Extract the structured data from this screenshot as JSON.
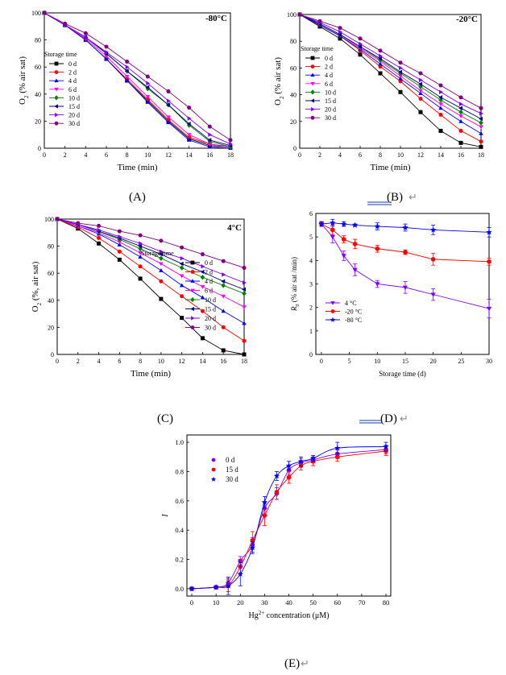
{
  "figure": {
    "captions": [
      "(A)",
      "(B)",
      "(C)",
      "(D)",
      "(E)"
    ],
    "return_mark": "↵"
  },
  "chart_data": [
    {
      "id": "A",
      "type": "line",
      "panel_label": "-80°C",
      "xlabel": "Time (min)",
      "ylabel": "O2 (% air sat)",
      "xlim": [
        0,
        18
      ],
      "ylim": [
        0,
        100
      ],
      "xticks": [
        0,
        2,
        4,
        6,
        8,
        10,
        12,
        14,
        16,
        18
      ],
      "yticks": [
        0,
        20,
        40,
        60,
        80,
        100
      ],
      "legend_title": "Storage time",
      "legend_position": "left",
      "x": [
        0,
        2,
        4,
        6,
        8,
        10,
        12,
        14,
        16,
        18
      ],
      "series": [
        {
          "name": "0 d",
          "color": "#000000",
          "marker": "square",
          "values": [
            100,
            91,
            80,
            66,
            50,
            35,
            20,
            7,
            2,
            1
          ]
        },
        {
          "name": "2 d",
          "color": "#ff0000",
          "marker": "circle",
          "values": [
            100,
            91,
            80,
            66,
            51,
            36,
            21,
            8,
            3,
            1
          ]
        },
        {
          "name": "4 d",
          "color": "#0000ff",
          "marker": "triangle-up",
          "values": [
            100,
            91,
            80,
            66,
            50,
            34,
            19,
            6,
            1,
            0
          ]
        },
        {
          "name": "6 d",
          "color": "#ff00ff",
          "marker": "triangle-down",
          "values": [
            100,
            91,
            81,
            68,
            53,
            38,
            23,
            10,
            3,
            1
          ]
        },
        {
          "name": "10 d",
          "color": "#008000",
          "marker": "diamond",
          "values": [
            100,
            91,
            82,
            70,
            57,
            44,
            32,
            17,
            5,
            1
          ]
        },
        {
          "name": "15 d",
          "color": "#000080",
          "marker": "triangle-left",
          "values": [
            100,
            91,
            82,
            70,
            57,
            45,
            32,
            18,
            6,
            2
          ]
        },
        {
          "name": "20 d",
          "color": "#8000ff",
          "marker": "triangle-right",
          "values": [
            100,
            91,
            82,
            71,
            60,
            48,
            35,
            22,
            10,
            3
          ]
        },
        {
          "name": "30 d",
          "color": "#800080",
          "marker": "hexagon",
          "values": [
            100,
            92,
            85,
            75,
            64,
            53,
            42,
            30,
            16,
            6
          ]
        }
      ]
    },
    {
      "id": "B",
      "type": "line",
      "panel_label": "-20°C",
      "xlabel": "Time (min)",
      "ylabel": "O2 (% air sat)",
      "xlim": [
        0,
        18
      ],
      "ylim": [
        0,
        100
      ],
      "xticks": [
        0,
        2,
        4,
        6,
        8,
        10,
        12,
        14,
        16,
        18
      ],
      "yticks": [
        0,
        20,
        40,
        60,
        80,
        100
      ],
      "legend_title": "Storage time",
      "legend_position": "left",
      "x": [
        0,
        2,
        4,
        6,
        8,
        10,
        12,
        14,
        16,
        18
      ],
      "series": [
        {
          "name": "0 d",
          "color": "#000000",
          "marker": "square",
          "values": [
            100,
            91,
            82,
            70,
            56,
            42,
            27,
            13,
            4,
            1
          ]
        },
        {
          "name": "2 d",
          "color": "#ff0000",
          "marker": "circle",
          "values": [
            100,
            92,
            84,
            73,
            61,
            50,
            37,
            25,
            13,
            5
          ]
        },
        {
          "name": "4 d",
          "color": "#0000ff",
          "marker": "triangle-up",
          "values": [
            100,
            92,
            84,
            74,
            63,
            52,
            41,
            30,
            20,
            11
          ]
        },
        {
          "name": "6 d",
          "color": "#ff00ff",
          "marker": "triangle-down",
          "values": [
            100,
            93,
            85,
            75,
            65,
            54,
            43,
            33,
            24,
            16
          ]
        },
        {
          "name": "10 d",
          "color": "#008000",
          "marker": "diamond",
          "values": [
            100,
            93,
            85,
            76,
            66,
            56,
            46,
            36,
            27,
            19
          ]
        },
        {
          "name": "15 d",
          "color": "#000080",
          "marker": "triangle-left",
          "values": [
            100,
            93,
            85,
            76,
            67,
            57,
            48,
            38,
            30,
            22
          ]
        },
        {
          "name": "20 d",
          "color": "#8000ff",
          "marker": "triangle-right",
          "values": [
            100,
            94,
            87,
            78,
            69,
            60,
            51,
            42,
            33,
            26
          ]
        },
        {
          "name": "30 d",
          "color": "#800080",
          "marker": "hexagon",
          "values": [
            100,
            95,
            90,
            82,
            73,
            64,
            56,
            47,
            38,
            30
          ]
        }
      ]
    },
    {
      "id": "C",
      "type": "line",
      "panel_label": "4°C",
      "xlabel": "Time (min)",
      "ylabel": "O2 (%, air sat)",
      "xlim": [
        0,
        18
      ],
      "ylim": [
        0,
        100
      ],
      "xticks": [
        0,
        2,
        4,
        6,
        8,
        10,
        12,
        14,
        16,
        18
      ],
      "yticks": [
        0,
        20,
        40,
        60,
        80,
        100
      ],
      "legend_title": "Storage time",
      "legend_position": "top-right",
      "x": [
        0,
        2,
        4,
        6,
        8,
        10,
        12,
        14,
        16,
        18
      ],
      "series": [
        {
          "name": "0 d",
          "color": "#000000",
          "marker": "square",
          "values": [
            100,
            93,
            82,
            70,
            56,
            41,
            27,
            12,
            3,
            0
          ]
        },
        {
          "name": "2 d",
          "color": "#ff0000",
          "marker": "circle",
          "values": [
            100,
            94,
            86,
            76,
            65,
            54,
            43,
            32,
            20,
            10
          ]
        },
        {
          "name": "4 d",
          "color": "#0000ff",
          "marker": "triangle-up",
          "values": [
            100,
            95,
            89,
            81,
            72,
            62,
            51,
            42,
            32,
            23
          ]
        },
        {
          "name": "6 d",
          "color": "#ff00ff",
          "marker": "triangle-down",
          "values": [
            100,
            95,
            90,
            83,
            75,
            67,
            58,
            50,
            43,
            35
          ]
        },
        {
          "name": "10 d",
          "color": "#008000",
          "marker": "diamond",
          "values": [
            100,
            96,
            91,
            85,
            78,
            71,
            64,
            57,
            51,
            45
          ]
        },
        {
          "name": "15 d",
          "color": "#000080",
          "marker": "triangle-left",
          "values": [
            100,
            96,
            91,
            86,
            80,
            74,
            67,
            61,
            54,
            48
          ]
        },
        {
          "name": "20 d",
          "color": "#8000ff",
          "marker": "triangle-right",
          "values": [
            100,
            96,
            92,
            87,
            82,
            76,
            71,
            65,
            59,
            53
          ]
        },
        {
          "name": "30 d",
          "color": "#800080",
          "marker": "hexagon",
          "values": [
            100,
            97,
            95,
            91,
            88,
            84,
            79,
            74,
            69,
            64
          ]
        }
      ]
    },
    {
      "id": "D",
      "type": "line",
      "xlabel": "Storage time (d)",
      "ylabel": "R0 (% air sat /min)",
      "xlim": [
        -1,
        30
      ],
      "ylim": [
        0,
        6
      ],
      "xticks": [
        0,
        5,
        10,
        15,
        20,
        25,
        30
      ],
      "yticks": [
        0,
        1,
        2,
        3,
        4,
        5,
        6
      ],
      "legend_position": "bottom-left",
      "x": [
        0,
        2,
        4,
        6,
        10,
        15,
        20,
        30
      ],
      "series": [
        {
          "name": "4 °C",
          "color": "#8000ff",
          "marker": "triangle-down",
          "values": [
            5.55,
            5.0,
            4.2,
            3.6,
            3.0,
            2.85,
            2.55,
            1.95
          ],
          "errors": [
            0.1,
            0.25,
            0.2,
            0.25,
            0.15,
            0.25,
            0.25,
            0.4
          ]
        },
        {
          "name": "-20 °C",
          "color": "#ff0000",
          "marker": "circle",
          "values": [
            5.55,
            5.3,
            4.9,
            4.7,
            4.5,
            4.35,
            4.05,
            3.95
          ],
          "errors": [
            0.1,
            0.2,
            0.15,
            0.2,
            0.15,
            0.1,
            0.25,
            0.15
          ]
        },
        {
          "name": "-80 °C",
          "color": "#0000ff",
          "marker": "star",
          "values": [
            5.55,
            5.6,
            5.55,
            5.5,
            5.45,
            5.4,
            5.3,
            5.2
          ],
          "errors": [
            0.1,
            0.15,
            0.1,
            0.05,
            0.15,
            0.15,
            0.2,
            0.2
          ]
        }
      ]
    },
    {
      "id": "E",
      "type": "scatter",
      "xlabel": "Hg2+ concentration (μM)",
      "ylabel": "I",
      "xlim": [
        -2,
        82
      ],
      "ylim": [
        -0.05,
        1.05
      ],
      "xticks": [
        0,
        10,
        20,
        30,
        40,
        50,
        60,
        70,
        80
      ],
      "yticks": [
        0.0,
        0.2,
        0.4,
        0.6,
        0.8,
        1.0
      ],
      "legend_position": "top-left",
      "x": [
        0,
        10,
        15,
        20,
        25,
        30,
        35,
        40,
        45,
        50,
        60,
        80
      ],
      "series": [
        {
          "name": "0 d",
          "color": "#8000ff",
          "marker": "hexagon",
          "values": [
            0.0,
            0.01,
            0.04,
            0.19,
            0.3,
            0.55,
            0.65,
            0.81,
            0.86,
            0.88,
            0.92,
            0.95
          ],
          "errors": [
            0.01,
            0.01,
            0.03,
            0.03,
            0.05,
            0.04,
            0.04,
            0.03,
            0.03,
            0.02,
            0.03,
            0.03
          ]
        },
        {
          "name": "15 d",
          "color": "#ff0000",
          "marker": "circle",
          "values": [
            0.0,
            0.01,
            0.02,
            0.15,
            0.33,
            0.5,
            0.66,
            0.76,
            0.84,
            0.87,
            0.9,
            0.94
          ],
          "errors": [
            0.01,
            0.01,
            0.04,
            0.05,
            0.06,
            0.07,
            0.05,
            0.04,
            0.03,
            0.03,
            0.03,
            0.03
          ]
        },
        {
          "name": "30 d",
          "color": "#0000ff",
          "marker": "star",
          "values": [
            0.0,
            0.01,
            0.02,
            0.1,
            0.28,
            0.59,
            0.77,
            0.84,
            0.87,
            0.89,
            0.96,
            0.97
          ],
          "errors": [
            0.01,
            0.01,
            0.06,
            0.08,
            0.04,
            0.04,
            0.03,
            0.03,
            0.03,
            0.02,
            0.04,
            0.03
          ]
        }
      ]
    }
  ]
}
